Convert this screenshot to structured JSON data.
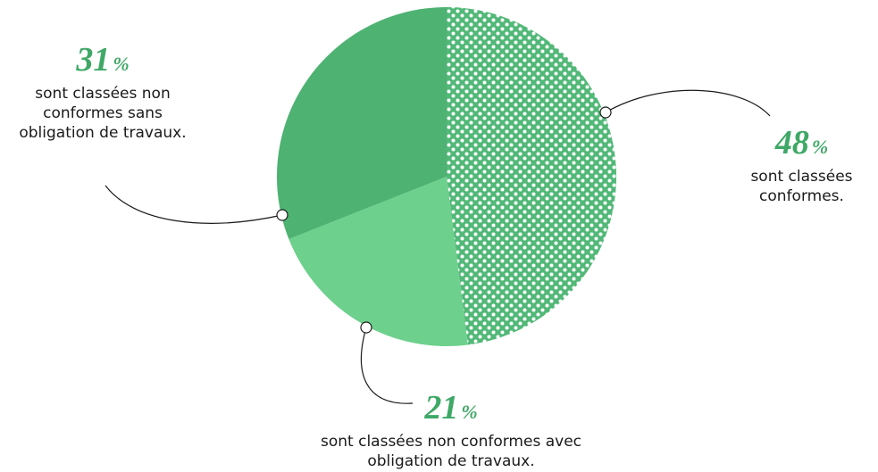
{
  "chart_data": {
    "type": "pie",
    "categories": [
      "sont classées conformes.",
      "sont classées non conformes avec obligation de travaux.",
      "sont classées non conformes sans obligation de travaux."
    ],
    "values": [
      48,
      21,
      31
    ],
    "unit": "%",
    "colors": [
      "#52b878",
      "#6dd08d",
      "#4eb272"
    ],
    "patterns": [
      "dots",
      null,
      null
    ]
  }
}
